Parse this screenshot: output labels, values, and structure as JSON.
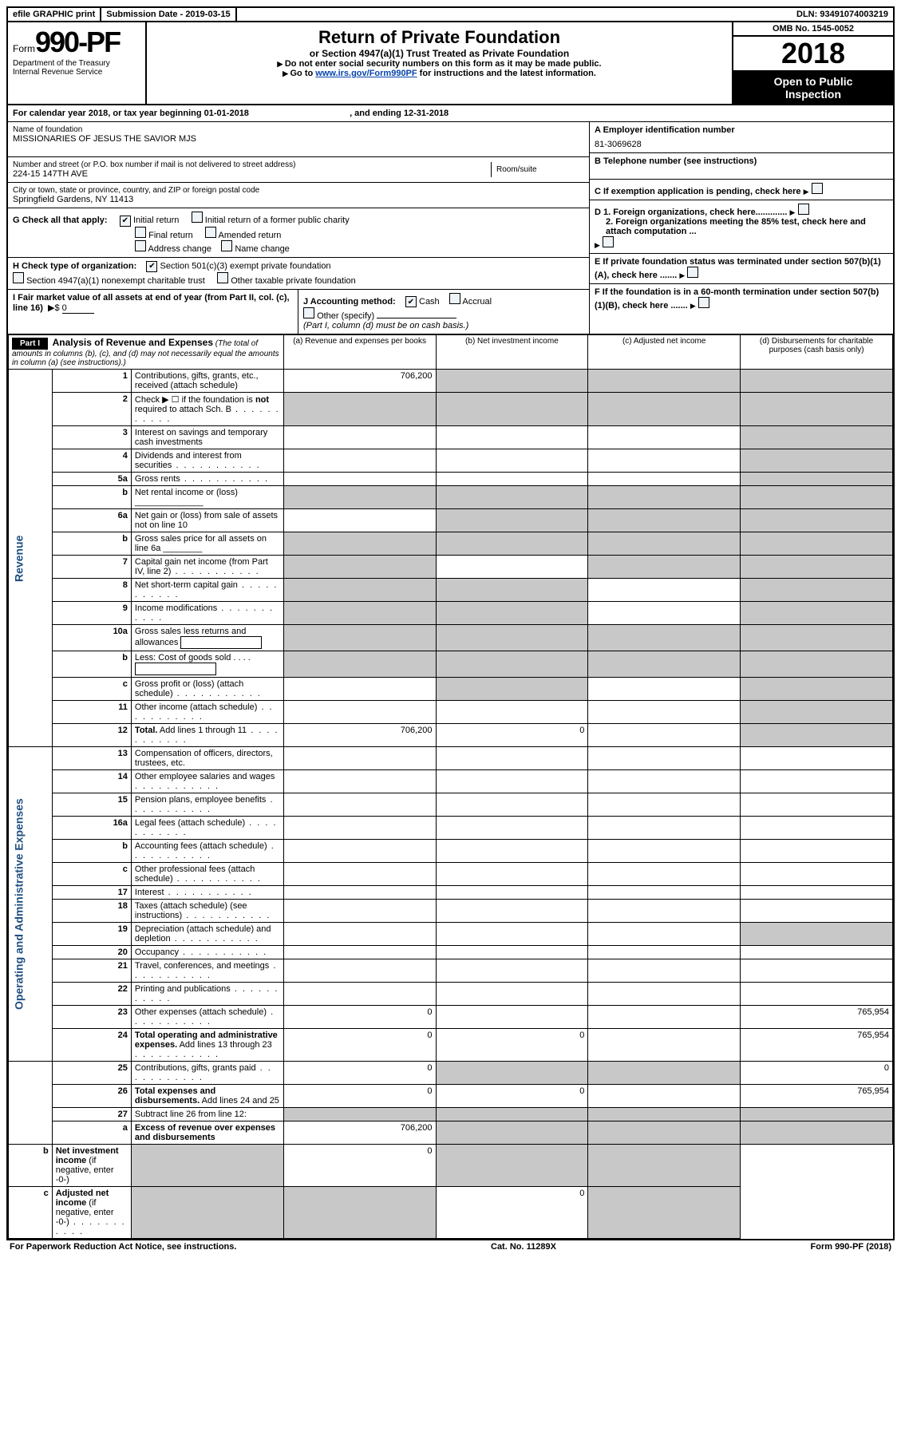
{
  "topbar": {
    "efile": "efile GRAPHIC print",
    "submission_label": "Submission Date - 2019-03-15",
    "dln_label": "DLN: 93491074003219"
  },
  "header": {
    "form_prefix": "Form",
    "form_number": "990-PF",
    "dept": "Department of the Treasury",
    "irs": "Internal Revenue Service",
    "title": "Return of Private Foundation",
    "subtitle": "or Section 4947(a)(1) Trust Treated as Private Foundation",
    "warn": "Do not enter social security numbers on this form as it may be made public.",
    "goto_pre": "Go to ",
    "goto_link": "www.irs.gov/Form990PF",
    "goto_post": " for instructions and the latest information.",
    "omb": "OMB No. 1545-0052",
    "year": "2018",
    "otp1": "Open to Public",
    "otp2": "Inspection"
  },
  "cal": {
    "text_a": "For calendar year 2018, or tax year beginning ",
    "begin": "01-01-2018",
    "text_b": ", and ending ",
    "end": "12-31-2018"
  },
  "id": {
    "name_lbl": "Name of foundation",
    "name": "MISSIONARIES OF JESUS THE SAVIOR MJS",
    "addr_lbl": "Number and street (or P.O. box number if mail is not delivered to street address)",
    "addr": "224-15 147TH AVE",
    "room_lbl": "Room/suite",
    "city_lbl": "City or town, state or province, country, and ZIP or foreign postal code",
    "city": "Springfield Gardens, NY  11413",
    "a_lbl": "A Employer identification number",
    "a_val": "81-3069628",
    "b_lbl": "B Telephone number (see instructions)",
    "c_lbl": "C If exemption application is pending, check here",
    "d1": "D 1. Foreign organizations, check here.............",
    "d2": "2. Foreign organizations meeting the 85% test, check here and attach computation ...",
    "e": "E  If private foundation status was terminated under section 507(b)(1)(A), check here .......",
    "f": "F  If the foundation is in a 60-month termination under section 507(b)(1)(B), check here .......",
    "g_lbl": "G Check all that apply:",
    "g_opts": [
      "Initial return",
      "Initial return of a former public charity",
      "Final return",
      "Amended return",
      "Address change",
      "Name change"
    ],
    "h_lbl": "H Check type of organization:",
    "h_opts": [
      "Section 501(c)(3) exempt private foundation",
      "Section 4947(a)(1) nonexempt charitable trust",
      "Other taxable private foundation"
    ],
    "i_lbl": "I Fair market value of all assets at end of year (from Part II, col. (c), line 16)",
    "i_val": "0",
    "j_lbl": "J Accounting method:",
    "j_opts": [
      "Cash",
      "Accrual",
      "Other (specify)"
    ],
    "j_note": "(Part I, column (d) must be on cash basis.)"
  },
  "part1": {
    "label": "Part I",
    "title": "Analysis of Revenue and Expenses",
    "note": " (The total of amounts in columns (b), (c), and (d) may not necessarily equal the amounts in column (a) (see instructions).)",
    "cols": {
      "a": "(a)   Revenue and expenses per books",
      "b": "(b)   Net investment income",
      "c": "(c)   Adjusted net income",
      "d": "(d)   Disbursements for charitable purposes (cash basis only)"
    }
  },
  "sections": {
    "rev": "Revenue",
    "oae": "Operating and Administrative Expenses"
  },
  "rows": [
    {
      "n": "1",
      "d": "Contributions, gifts, grants, etc., received (attach schedule)",
      "a": "706,200",
      "sb": true,
      "sc": true,
      "sd": true
    },
    {
      "n": "2",
      "d": "Check ▶ ☐ if the foundation is <b>not</b> required to attach Sch. B",
      "dots": true,
      "sa": true,
      "sb": true,
      "sc": true,
      "sd": true
    },
    {
      "n": "3",
      "d": "Interest on savings and temporary cash investments",
      "sd": true
    },
    {
      "n": "4",
      "d": "Dividends and interest from securities",
      "dots": true,
      "sd": true
    },
    {
      "n": "5a",
      "d": "Gross rents",
      "dots": true,
      "sd": true
    },
    {
      "n": "b",
      "d": "Net rental income or (loss)  ______________",
      "sa": true,
      "sb": true,
      "sc": true,
      "sd": true
    },
    {
      "n": "6a",
      "d": "Net gain or (loss) from sale of assets not on line 10",
      "sb": true,
      "sc": true,
      "sd": true
    },
    {
      "n": "b",
      "d": "Gross sales price for all assets on line 6a  ________",
      "sa": true,
      "sb": true,
      "sc": true,
      "sd": true
    },
    {
      "n": "7",
      "d": "Capital gain net income (from Part IV, line 2)",
      "dots": true,
      "sa": true,
      "sc": true,
      "sd": true
    },
    {
      "n": "8",
      "d": "Net short-term capital gain",
      "dots": true,
      "sa": true,
      "sb": true,
      "sd": true
    },
    {
      "n": "9",
      "d": "Income modifications",
      "dots": true,
      "sa": true,
      "sb": true,
      "sd": true
    },
    {
      "n": "10a",
      "d": "Gross sales less returns and allowances <span class=\"inline-input\"></span>",
      "sa": true,
      "sb": true,
      "sc": true,
      "sd": true
    },
    {
      "n": "b",
      "d": "Less: Cost of goods sold   .  .  .  .  <span class=\"inline-input\"></span>",
      "sa": true,
      "sb": true,
      "sc": true,
      "sd": true
    },
    {
      "n": "c",
      "d": "Gross profit or (loss) (attach schedule)",
      "dots": true,
      "sb": true,
      "sd": true
    },
    {
      "n": "11",
      "d": "Other income (attach schedule)",
      "dots": true,
      "sd": true
    },
    {
      "n": "12",
      "d": "<b>Total.</b> Add lines 1 through 11",
      "dots": true,
      "a": "706,200",
      "b": "0",
      "sd": true
    },
    {
      "n": "13",
      "d": "Compensation of officers, directors, trustees, etc."
    },
    {
      "n": "14",
      "d": "Other employee salaries and wages",
      "dots": true
    },
    {
      "n": "15",
      "d": "Pension plans, employee benefits",
      "dots": true
    },
    {
      "n": "16a",
      "d": "Legal fees (attach schedule)",
      "dots": true
    },
    {
      "n": "b",
      "d": "Accounting fees (attach schedule)",
      "dots": true
    },
    {
      "n": "c",
      "d": "Other professional fees (attach schedule)",
      "dots": true
    },
    {
      "n": "17",
      "d": "Interest",
      "dots": true
    },
    {
      "n": "18",
      "d": "Taxes (attach schedule) (see instructions)",
      "dots": true
    },
    {
      "n": "19",
      "d": "Depreciation (attach schedule) and depletion",
      "dots": true,
      "sd": true
    },
    {
      "n": "20",
      "d": "Occupancy",
      "dots": true
    },
    {
      "n": "21",
      "d": "Travel, conferences, and meetings",
      "dots": true
    },
    {
      "n": "22",
      "d": "Printing and publications",
      "dots": true
    },
    {
      "n": "23",
      "d": "Other expenses (attach schedule)",
      "dots": true,
      "a": "0",
      "dval": "765,954"
    },
    {
      "n": "24",
      "d": "<b>Total operating and administrative expenses.</b> Add lines 13 through 23",
      "dots": true,
      "a": "0",
      "b": "0",
      "dval": "765,954"
    },
    {
      "n": "25",
      "d": "Contributions, gifts, grants paid",
      "dots": true,
      "a": "0",
      "sb": true,
      "sc": true,
      "dval": "0"
    },
    {
      "n": "26",
      "d": "<b>Total expenses and disbursements.</b> Add lines 24 and 25",
      "a": "0",
      "b": "0",
      "dval": "765,954"
    },
    {
      "n": "27",
      "d": "Subtract line 26 from line 12:",
      "sa": true,
      "sb": true,
      "sc": true,
      "sd": true
    },
    {
      "n": "a",
      "d": "<b>Excess of revenue over expenses and disbursements</b>",
      "a": "706,200",
      "sb": true,
      "sc": true,
      "sd": true
    },
    {
      "n": "b",
      "d": "<b>Net investment income</b> (if negative, enter -0-)",
      "sa": true,
      "b": "0",
      "sc": true,
      "sd": true
    },
    {
      "n": "c",
      "d": "<b>Adjusted net income</b> (if negative, enter -0-)",
      "dots": true,
      "sa": true,
      "sb": true,
      "c": "0",
      "sd": true
    }
  ],
  "footer": {
    "left": "For Paperwork Reduction Act Notice, see instructions.",
    "mid": "Cat. No. 11289X",
    "right": "Form 990-PF (2018)"
  }
}
